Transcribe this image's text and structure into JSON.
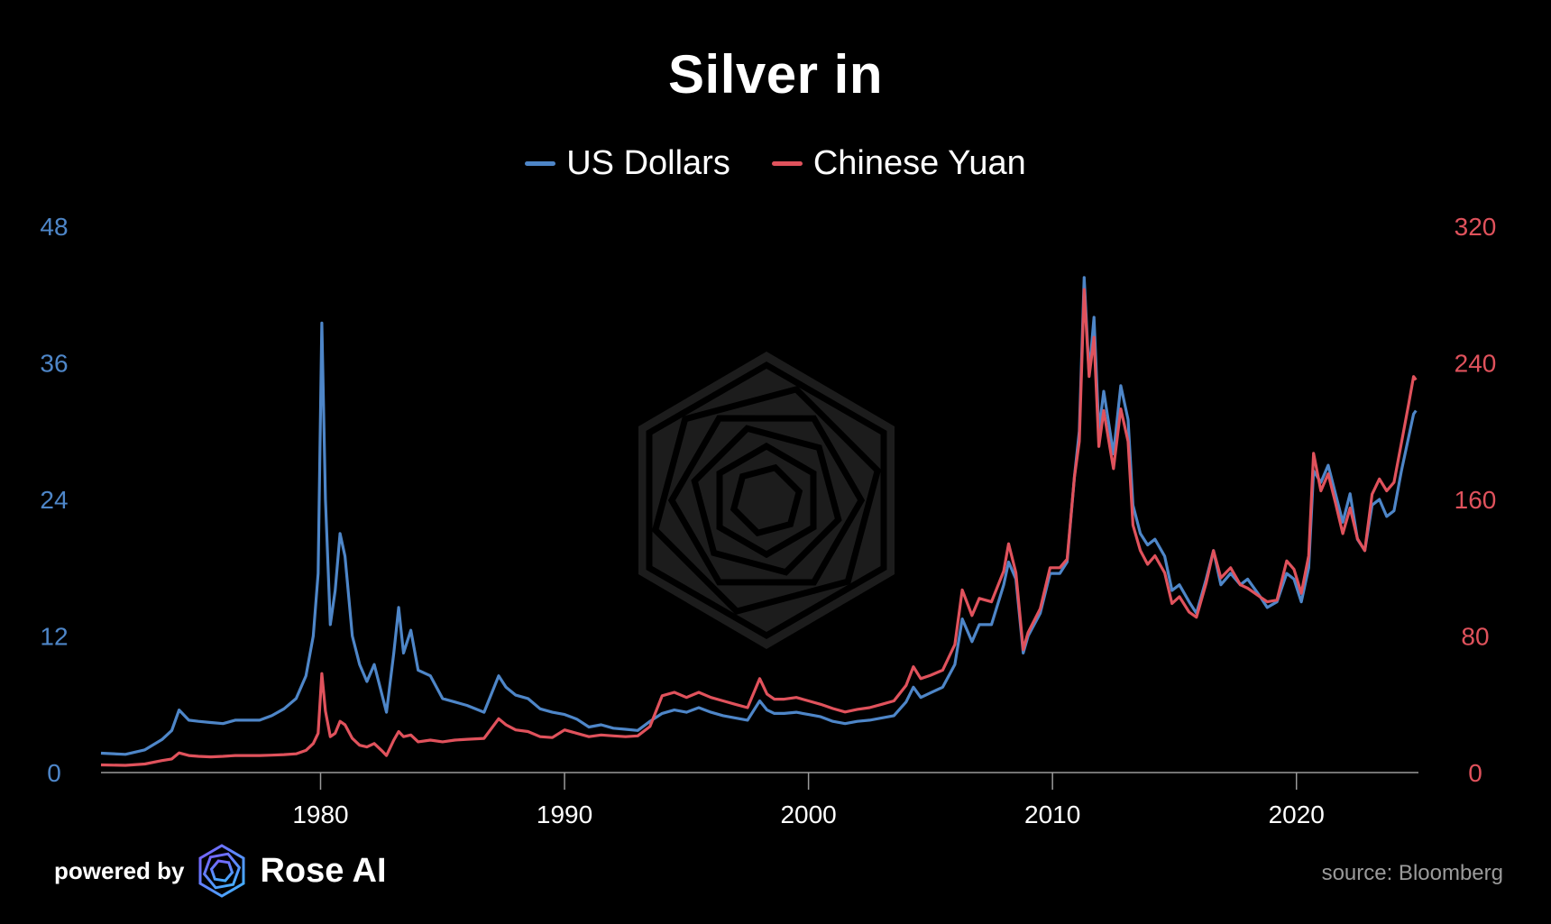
{
  "chart_data": {
    "type": "line",
    "title": "Silver in",
    "legend_position": "top-center",
    "grid": false,
    "x_axis": {
      "ticks": [
        1980,
        1990,
        2000,
        2010,
        2020
      ],
      "range": [
        1971,
        2025
      ]
    },
    "y_left": {
      "ticks": [
        0,
        12,
        24,
        36,
        48
      ],
      "range": [
        0,
        48
      ],
      "color": "#4e86c8"
    },
    "y_right": {
      "ticks": [
        0,
        80,
        160,
        240,
        320
      ],
      "range": [
        0,
        320
      ],
      "color": "#e0525c"
    },
    "series": [
      {
        "name": "US Dollars",
        "axis": "left",
        "color": "#4e86c8",
        "points": [
          [
            1971.0,
            1.7
          ],
          [
            1972.0,
            1.6
          ],
          [
            1972.8,
            2.0
          ],
          [
            1973.5,
            2.9
          ],
          [
            1973.9,
            3.7
          ],
          [
            1974.2,
            5.5
          ],
          [
            1974.6,
            4.6
          ],
          [
            1975.0,
            4.5
          ],
          [
            1975.5,
            4.4
          ],
          [
            1976.0,
            4.3
          ],
          [
            1976.5,
            4.6
          ],
          [
            1977.0,
            4.6
          ],
          [
            1977.5,
            4.6
          ],
          [
            1978.0,
            5.0
          ],
          [
            1978.5,
            5.6
          ],
          [
            1979.0,
            6.5
          ],
          [
            1979.4,
            8.5
          ],
          [
            1979.7,
            12.0
          ],
          [
            1979.9,
            17.5
          ],
          [
            1980.05,
            39.5
          ],
          [
            1980.2,
            24.0
          ],
          [
            1980.4,
            13.0
          ],
          [
            1980.6,
            16.0
          ],
          [
            1980.8,
            21.0
          ],
          [
            1981.0,
            19.0
          ],
          [
            1981.3,
            12.0
          ],
          [
            1981.6,
            9.5
          ],
          [
            1981.9,
            8.0
          ],
          [
            1982.2,
            9.5
          ],
          [
            1982.5,
            7.0
          ],
          [
            1982.7,
            5.3
          ],
          [
            1983.0,
            10.5
          ],
          [
            1983.2,
            14.5
          ],
          [
            1983.4,
            10.5
          ],
          [
            1983.7,
            12.5
          ],
          [
            1984.0,
            9.0
          ],
          [
            1984.5,
            8.5
          ],
          [
            1985.0,
            6.5
          ],
          [
            1985.5,
            6.2
          ],
          [
            1986.0,
            5.9
          ],
          [
            1986.7,
            5.3
          ],
          [
            1987.3,
            8.5
          ],
          [
            1987.6,
            7.5
          ],
          [
            1988.0,
            6.8
          ],
          [
            1988.5,
            6.5
          ],
          [
            1989.0,
            5.6
          ],
          [
            1989.5,
            5.3
          ],
          [
            1990.0,
            5.1
          ],
          [
            1990.5,
            4.7
          ],
          [
            1991.0,
            4.0
          ],
          [
            1991.5,
            4.2
          ],
          [
            1992.0,
            3.9
          ],
          [
            1992.5,
            3.8
          ],
          [
            1993.0,
            3.7
          ],
          [
            1993.5,
            4.5
          ],
          [
            1994.0,
            5.2
          ],
          [
            1994.5,
            5.5
          ],
          [
            1995.0,
            5.3
          ],
          [
            1995.5,
            5.7
          ],
          [
            1996.0,
            5.3
          ],
          [
            1996.5,
            5.0
          ],
          [
            1997.0,
            4.8
          ],
          [
            1997.5,
            4.6
          ],
          [
            1998.0,
            6.3
          ],
          [
            1998.3,
            5.5
          ],
          [
            1998.6,
            5.2
          ],
          [
            1999.0,
            5.2
          ],
          [
            1999.5,
            5.3
          ],
          [
            2000.0,
            5.1
          ],
          [
            2000.5,
            4.9
          ],
          [
            2001.0,
            4.5
          ],
          [
            2001.5,
            4.3
          ],
          [
            2002.0,
            4.5
          ],
          [
            2002.5,
            4.6
          ],
          [
            2003.0,
            4.8
          ],
          [
            2003.5,
            5.0
          ],
          [
            2004.0,
            6.2
          ],
          [
            2004.3,
            7.5
          ],
          [
            2004.6,
            6.6
          ],
          [
            2005.0,
            7.0
          ],
          [
            2005.5,
            7.5
          ],
          [
            2006.0,
            9.5
          ],
          [
            2006.3,
            13.5
          ],
          [
            2006.7,
            11.5
          ],
          [
            2007.0,
            13.0
          ],
          [
            2007.5,
            13.0
          ],
          [
            2008.0,
            16.5
          ],
          [
            2008.2,
            18.5
          ],
          [
            2008.5,
            17.0
          ],
          [
            2008.8,
            10.5
          ],
          [
            2009.0,
            12.0
          ],
          [
            2009.5,
            14.0
          ],
          [
            2009.9,
            17.5
          ],
          [
            2010.3,
            17.5
          ],
          [
            2010.6,
            18.5
          ],
          [
            2010.9,
            26.0
          ],
          [
            2011.1,
            30.0
          ],
          [
            2011.3,
            43.5
          ],
          [
            2011.5,
            35.0
          ],
          [
            2011.7,
            40.0
          ],
          [
            2011.9,
            30.0
          ],
          [
            2012.1,
            33.5
          ],
          [
            2012.5,
            28.0
          ],
          [
            2012.8,
            34.0
          ],
          [
            2013.1,
            31.0
          ],
          [
            2013.3,
            23.5
          ],
          [
            2013.6,
            21.0
          ],
          [
            2013.9,
            20.0
          ],
          [
            2014.2,
            20.5
          ],
          [
            2014.6,
            19.0
          ],
          [
            2014.9,
            16.0
          ],
          [
            2015.2,
            16.5
          ],
          [
            2015.6,
            15.0
          ],
          [
            2015.9,
            14.0
          ],
          [
            2016.3,
            17.0
          ],
          [
            2016.6,
            19.5
          ],
          [
            2016.9,
            16.5
          ],
          [
            2017.3,
            17.5
          ],
          [
            2017.7,
            16.5
          ],
          [
            2018.0,
            17.0
          ],
          [
            2018.5,
            15.5
          ],
          [
            2018.8,
            14.5
          ],
          [
            2019.2,
            15.0
          ],
          [
            2019.6,
            17.5
          ],
          [
            2019.9,
            17.0
          ],
          [
            2020.2,
            15.0
          ],
          [
            2020.5,
            18.0
          ],
          [
            2020.7,
            26.5
          ],
          [
            2021.0,
            25.5
          ],
          [
            2021.3,
            27.0
          ],
          [
            2021.6,
            24.5
          ],
          [
            2021.9,
            22.0
          ],
          [
            2022.2,
            24.5
          ],
          [
            2022.5,
            20.5
          ],
          [
            2022.8,
            19.5
          ],
          [
            2023.1,
            23.5
          ],
          [
            2023.4,
            24.0
          ],
          [
            2023.7,
            22.5
          ],
          [
            2024.0,
            23.0
          ],
          [
            2024.3,
            26.5
          ],
          [
            2024.6,
            29.5
          ],
          [
            2024.8,
            31.5
          ],
          [
            2024.9,
            31.8
          ]
        ]
      },
      {
        "name": "Chinese Yuan",
        "axis": "right",
        "color": "#e0525c",
        "points": [
          [
            1971.0,
            4.5
          ],
          [
            1972.0,
            4.2
          ],
          [
            1972.8,
            5.0
          ],
          [
            1973.5,
            7.0
          ],
          [
            1973.9,
            8.0
          ],
          [
            1974.2,
            11.5
          ],
          [
            1974.6,
            10.0
          ],
          [
            1975.0,
            9.5
          ],
          [
            1975.5,
            9.2
          ],
          [
            1976.0,
            9.5
          ],
          [
            1976.5,
            10.0
          ],
          [
            1977.0,
            10.0
          ],
          [
            1977.5,
            10.0
          ],
          [
            1978.0,
            10.2
          ],
          [
            1978.5,
            10.5
          ],
          [
            1979.0,
            11.0
          ],
          [
            1979.4,
            13.0
          ],
          [
            1979.7,
            17.0
          ],
          [
            1979.9,
            23.0
          ],
          [
            1980.05,
            58.0
          ],
          [
            1980.2,
            36.0
          ],
          [
            1980.4,
            21.0
          ],
          [
            1980.6,
            23.0
          ],
          [
            1980.8,
            30.0
          ],
          [
            1981.0,
            28.0
          ],
          [
            1981.3,
            20.0
          ],
          [
            1981.6,
            16.0
          ],
          [
            1981.9,
            15.0
          ],
          [
            1982.2,
            17.0
          ],
          [
            1982.5,
            13.0
          ],
          [
            1982.7,
            10.0
          ],
          [
            1983.0,
            19.0
          ],
          [
            1983.2,
            24.0
          ],
          [
            1983.4,
            21.0
          ],
          [
            1983.7,
            22.0
          ],
          [
            1984.0,
            18.0
          ],
          [
            1984.5,
            19.0
          ],
          [
            1985.0,
            18.0
          ],
          [
            1985.5,
            19.0
          ],
          [
            1986.0,
            19.5
          ],
          [
            1986.7,
            20.0
          ],
          [
            1987.3,
            31.5
          ],
          [
            1987.6,
            28.0
          ],
          [
            1988.0,
            25.0
          ],
          [
            1988.5,
            24.0
          ],
          [
            1989.0,
            21.0
          ],
          [
            1989.5,
            20.5
          ],
          [
            1990.0,
            25.0
          ],
          [
            1990.5,
            23.0
          ],
          [
            1991.0,
            21.0
          ],
          [
            1991.5,
            22.0
          ],
          [
            1992.0,
            21.5
          ],
          [
            1992.5,
            21.0
          ],
          [
            1993.0,
            21.5
          ],
          [
            1993.5,
            27.0
          ],
          [
            1994.0,
            45.0
          ],
          [
            1994.5,
            47.0
          ],
          [
            1995.0,
            44.0
          ],
          [
            1995.5,
            47.0
          ],
          [
            1996.0,
            44.0
          ],
          [
            1996.5,
            42.0
          ],
          [
            1997.0,
            40.0
          ],
          [
            1997.5,
            38.0
          ],
          [
            1998.0,
            55.0
          ],
          [
            1998.3,
            46.0
          ],
          [
            1998.6,
            43.0
          ],
          [
            1999.0,
            43.0
          ],
          [
            1999.5,
            44.0
          ],
          [
            2000.0,
            42.0
          ],
          [
            2000.5,
            40.0
          ],
          [
            2001.0,
            37.5
          ],
          [
            2001.5,
            35.5
          ],
          [
            2002.0,
            37.0
          ],
          [
            2002.5,
            38.0
          ],
          [
            2003.0,
            40.0
          ],
          [
            2003.5,
            42.0
          ],
          [
            2004.0,
            51.0
          ],
          [
            2004.3,
            62.0
          ],
          [
            2004.6,
            55.0
          ],
          [
            2005.0,
            57.0
          ],
          [
            2005.5,
            60.0
          ],
          [
            2006.0,
            75.0
          ],
          [
            2006.3,
            107.0
          ],
          [
            2006.7,
            92.0
          ],
          [
            2007.0,
            102.0
          ],
          [
            2007.5,
            100.0
          ],
          [
            2008.0,
            118.0
          ],
          [
            2008.2,
            134.0
          ],
          [
            2008.5,
            117.0
          ],
          [
            2008.8,
            72.0
          ],
          [
            2009.0,
            82.0
          ],
          [
            2009.5,
            96.0
          ],
          [
            2009.9,
            120.0
          ],
          [
            2010.3,
            120.0
          ],
          [
            2010.6,
            125.0
          ],
          [
            2010.9,
            173.0
          ],
          [
            2011.1,
            194.0
          ],
          [
            2011.3,
            283.0
          ],
          [
            2011.5,
            232.0
          ],
          [
            2011.7,
            255.0
          ],
          [
            2011.9,
            191.0
          ],
          [
            2012.1,
            212.0
          ],
          [
            2012.5,
            178.0
          ],
          [
            2012.8,
            213.0
          ],
          [
            2013.1,
            194.0
          ],
          [
            2013.3,
            145.0
          ],
          [
            2013.6,
            130.0
          ],
          [
            2013.9,
            122.0
          ],
          [
            2014.2,
            127.0
          ],
          [
            2014.6,
            117.0
          ],
          [
            2014.9,
            99.0
          ],
          [
            2015.2,
            103.0
          ],
          [
            2015.6,
            94.0
          ],
          [
            2015.9,
            91.0
          ],
          [
            2016.3,
            111.0
          ],
          [
            2016.6,
            130.0
          ],
          [
            2016.9,
            114.0
          ],
          [
            2017.3,
            120.0
          ],
          [
            2017.7,
            110.0
          ],
          [
            2018.0,
            108.0
          ],
          [
            2018.5,
            103.0
          ],
          [
            2018.8,
            100.0
          ],
          [
            2019.2,
            101.0
          ],
          [
            2019.6,
            124.0
          ],
          [
            2019.9,
            119.0
          ],
          [
            2020.2,
            105.0
          ],
          [
            2020.5,
            127.0
          ],
          [
            2020.7,
            187.0
          ],
          [
            2021.0,
            165.0
          ],
          [
            2021.3,
            175.0
          ],
          [
            2021.6,
            158.0
          ],
          [
            2021.9,
            140.0
          ],
          [
            2022.2,
            155.0
          ],
          [
            2022.5,
            137.0
          ],
          [
            2022.8,
            130.0
          ],
          [
            2023.1,
            163.0
          ],
          [
            2023.4,
            172.0
          ],
          [
            2023.7,
            165.0
          ],
          [
            2024.0,
            170.0
          ],
          [
            2024.3,
            193.0
          ],
          [
            2024.6,
            216.0
          ],
          [
            2024.8,
            232.0
          ],
          [
            2024.9,
            230.0
          ]
        ]
      }
    ]
  },
  "footer": {
    "powered_by": "powered by",
    "brand": "Rose AI",
    "source": "source: Bloomberg"
  }
}
